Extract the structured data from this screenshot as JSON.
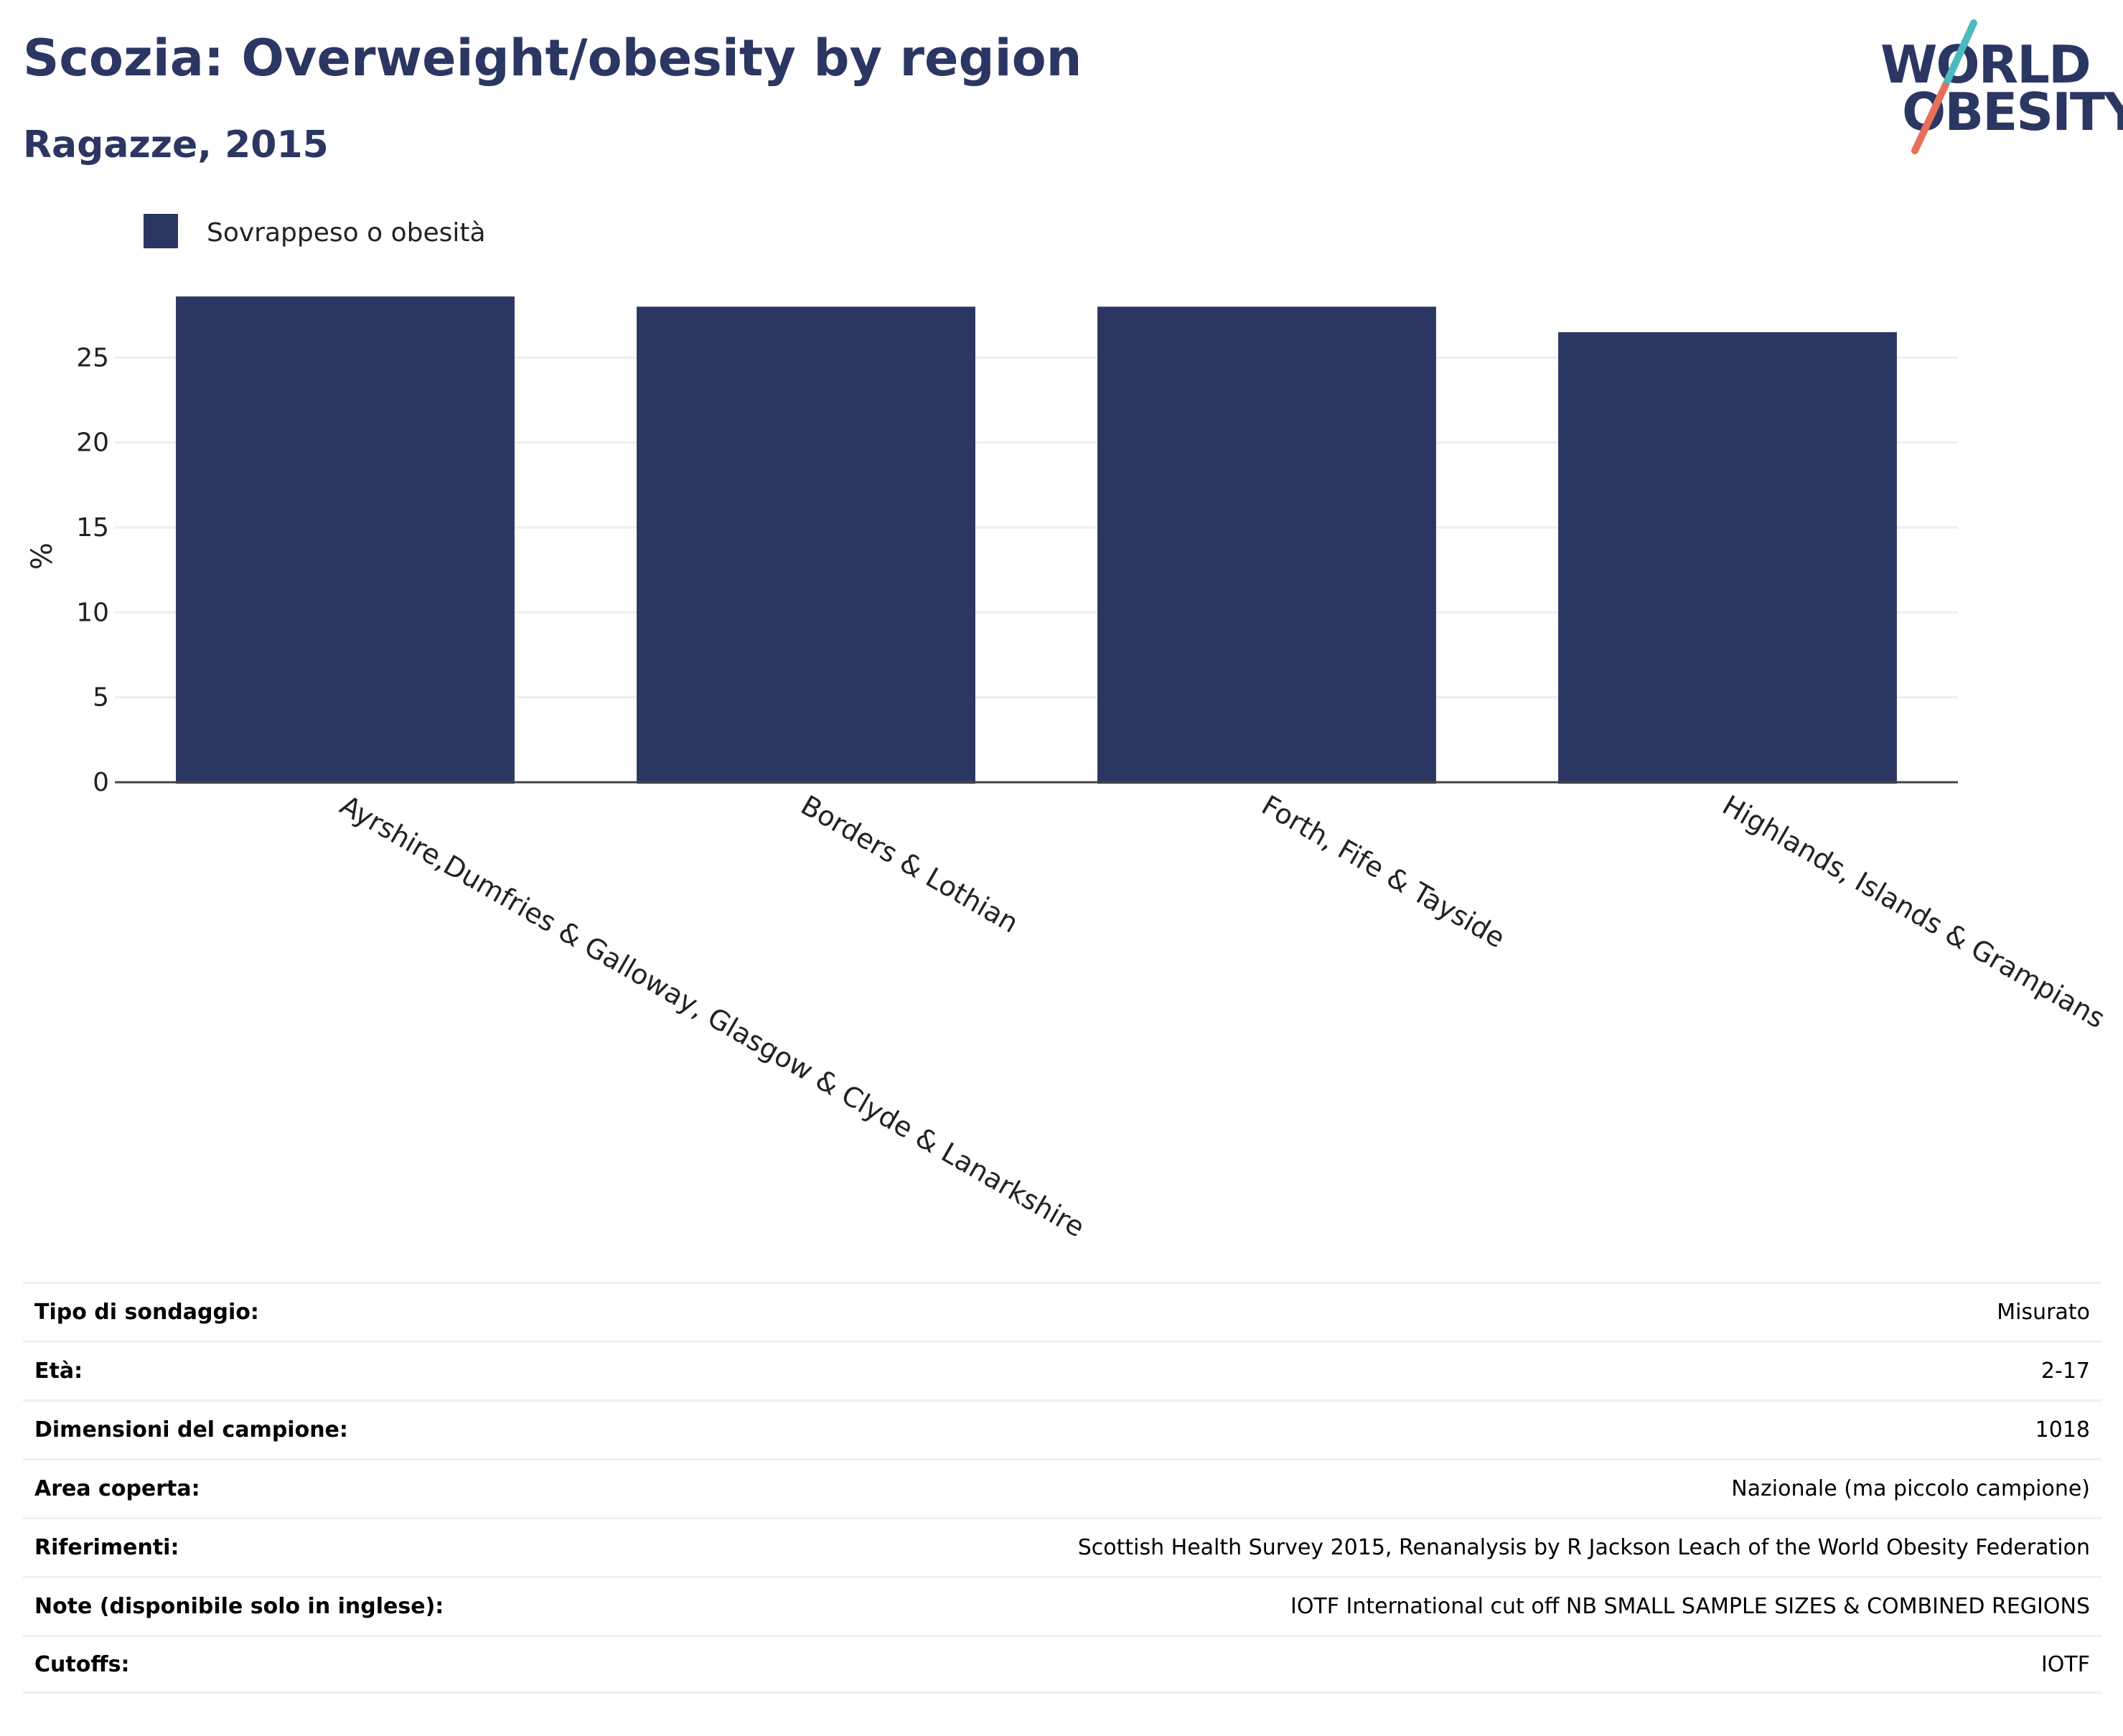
{
  "header": {
    "title": "Scozia: Overweight/obesity by region",
    "subtitle": "Ragazze, 2015"
  },
  "logo": {
    "line1": "WORLD",
    "line2": "OBESITY",
    "colors": [
      "#2b3762",
      "#4db8c0",
      "#e8705a"
    ]
  },
  "chart_data": {
    "type": "bar",
    "categories": [
      "Ayrshire,Dumfries & Galloway, Glasgow & Clyde & Lanarkshire",
      "Borders & Lothian",
      "Forth, Fife & Tayside",
      "Highlands, Islands & Grampians"
    ],
    "series": [
      {
        "name": "Sovrappeso o obesità",
        "values": [
          28.6,
          28.0,
          28.0,
          26.5
        ],
        "color": "#2b3762"
      }
    ],
    "ylabel": "%",
    "ylim": [
      0,
      30
    ],
    "yticks": [
      0,
      5,
      10,
      15,
      20,
      25
    ],
    "grid": true,
    "legend": "top-left"
  },
  "info": [
    {
      "label": "Tipo di sondaggio:",
      "value": "Misurato"
    },
    {
      "label": "Età:",
      "value": "2-17"
    },
    {
      "label": "Dimensioni del campione:",
      "value": "1018"
    },
    {
      "label": "Area coperta:",
      "value": "Nazionale (ma piccolo campione)"
    },
    {
      "label": "Riferimenti:",
      "value": "Scottish Health Survey 2015, Renanalysis by R Jackson Leach of the World Obesity Federation"
    },
    {
      "label": "Note (disponibile solo in inglese):",
      "value": "IOTF International cut off NB SMALL SAMPLE SIZES & COMBINED REGIONS"
    },
    {
      "label": "Cutoffs:",
      "value": "IOTF"
    }
  ]
}
